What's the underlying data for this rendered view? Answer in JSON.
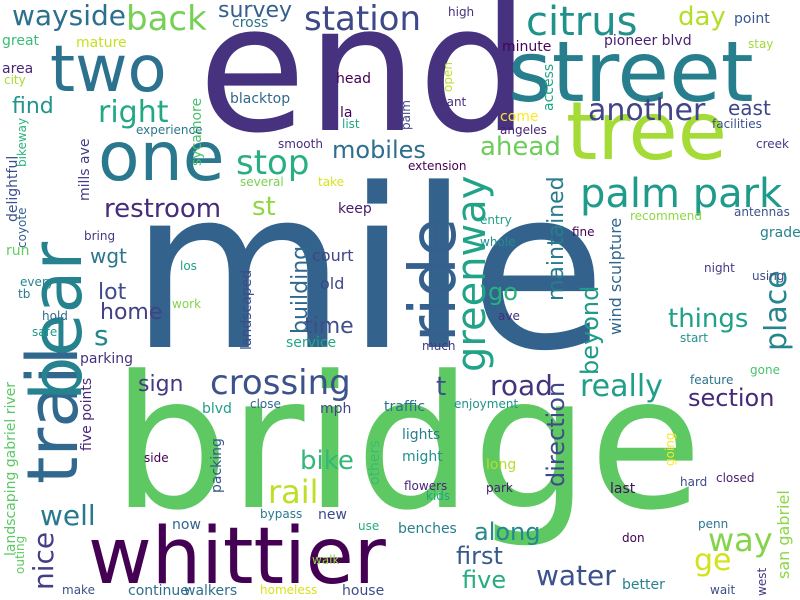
{
  "cloud": {
    "background": "#ffffff",
    "words": [
      {
        "text": "mile",
        "color": "#33638d"
      },
      {
        "text": "bridge",
        "color": "#5ec962"
      },
      {
        "text": "end",
        "color": "#46327e"
      },
      {
        "text": "tree",
        "color": "#a5db36"
      },
      {
        "text": "street",
        "color": "#277f8e"
      },
      {
        "text": "whittier",
        "color": "#440154"
      },
      {
        "text": "trail",
        "color": "#31688e"
      },
      {
        "text": "bear",
        "color": "#26828e"
      },
      {
        "text": "ride",
        "color": "#35608d"
      },
      {
        "text": "one",
        "color": "#2a788e"
      },
      {
        "text": "two",
        "color": "#2c728e"
      },
      {
        "text": "citrus",
        "color": "#21918c"
      },
      {
        "text": "palm park",
        "color": "#1e9b8a"
      },
      {
        "text": "crossing",
        "color": "#3b528b"
      },
      {
        "text": "station",
        "color": "#3e4989"
      },
      {
        "text": "back",
        "color": "#75d054"
      },
      {
        "text": "stop",
        "color": "#29af7f"
      },
      {
        "text": "greenway",
        "color": "#20a386"
      },
      {
        "text": "wayside",
        "color": "#2d708e"
      },
      {
        "text": "another",
        "color": "#414487"
      },
      {
        "text": "right",
        "color": "#22a884"
      },
      {
        "text": "road",
        "color": "#46337f"
      },
      {
        "text": "really",
        "color": "#1f9e89"
      },
      {
        "text": "water",
        "color": "#3b518b"
      },
      {
        "text": "rail",
        "color": "#bddf26"
      },
      {
        "text": "way",
        "color": "#84d44b"
      },
      {
        "text": "place",
        "color": "#25858e"
      },
      {
        "text": "restroom",
        "color": "#472c7a"
      },
      {
        "text": "mobiles",
        "color": "#2e6e8e"
      },
      {
        "text": "ahead",
        "color": "#6ccd5a"
      },
      {
        "text": "section",
        "color": "#482878"
      },
      {
        "text": "things",
        "color": "#1fa188"
      },
      {
        "text": "day",
        "color": "#b5de2b"
      },
      {
        "text": "ge",
        "color": "#d2e21b"
      },
      {
        "text": "well",
        "color": "#29798e"
      },
      {
        "text": "nice",
        "color": "#433e85"
      },
      {
        "text": "direction",
        "color": "#3e4a89"
      },
      {
        "text": "bike",
        "color": "#35b779"
      },
      {
        "text": "along",
        "color": "#23898e"
      },
      {
        "text": "east",
        "color": "#3f4788"
      },
      {
        "text": "maintained",
        "color": "#287c8e"
      },
      {
        "text": "beyond",
        "color": "#1e9c89"
      },
      {
        "text": "survey",
        "color": "#355f8d"
      },
      {
        "text": "go",
        "color": "#2ab07f"
      },
      {
        "text": "five",
        "color": "#26ad81"
      },
      {
        "text": "first",
        "color": "#375a8c"
      },
      {
        "text": "time",
        "color": "#3d4e8a"
      },
      {
        "text": "building",
        "color": "#30698e"
      },
      {
        "text": "home",
        "color": "#424186"
      },
      {
        "text": "lot",
        "color": "#3e4c8a"
      },
      {
        "text": "sign",
        "color": "#453781"
      },
      {
        "text": "find",
        "color": "#1f958b"
      },
      {
        "text": "st",
        "color": "#90d743"
      },
      {
        "text": "s",
        "color": "#24878e"
      },
      {
        "text": "wgt",
        "color": "#2b758e"
      },
      {
        "text": "t",
        "color": "#3c4f8a"
      },
      {
        "text": "wind sculpture",
        "color": "#32658e"
      },
      {
        "text": "san gabriel",
        "color": "#8bd646"
      },
      {
        "text": "point",
        "color": "#38588c"
      },
      {
        "text": "pioneer blvd",
        "color": "#481f70"
      },
      {
        "text": "minute",
        "color": "#450559"
      },
      {
        "text": "high",
        "color": "#46307e"
      },
      {
        "text": "cross",
        "color": "#2c718e"
      },
      {
        "text": "great",
        "color": "#3bbb75"
      },
      {
        "text": "mature",
        "color": "#c8e020"
      },
      {
        "text": "area",
        "color": "#482677"
      },
      {
        "text": "city",
        "color": "#a8db34"
      },
      {
        "text": "sycamore",
        "color": "#4ac16d"
      },
      {
        "text": "head",
        "color": "#440154"
      },
      {
        "text": "blacktop",
        "color": "#31688e"
      },
      {
        "text": "la",
        "color": "#46085c"
      },
      {
        "text": "list",
        "color": "#22a785"
      },
      {
        "text": "palm",
        "color": "#3e4989"
      },
      {
        "text": "open",
        "color": "#bddf26"
      },
      {
        "text": "cant",
        "color": "#472d7b"
      },
      {
        "text": "access",
        "color": "#20a486"
      },
      {
        "text": "come",
        "color": "#fde725"
      },
      {
        "text": "angeles",
        "color": "#482475"
      },
      {
        "text": "stay",
        "color": "#a0da39"
      },
      {
        "text": "facilities",
        "color": "#3b528b"
      },
      {
        "text": "creek",
        "color": "#433d84"
      },
      {
        "text": "experience",
        "color": "#2a778e"
      },
      {
        "text": "smooth",
        "color": "#46307e"
      },
      {
        "text": "extension",
        "color": "#440154"
      },
      {
        "text": "several",
        "color": "#7ad151"
      },
      {
        "text": "take",
        "color": "#d8e219"
      },
      {
        "text": "mills ave",
        "color": "#433e85"
      },
      {
        "text": "bikeway",
        "color": "#2db27d"
      },
      {
        "text": "delightful",
        "color": "#3c508b"
      },
      {
        "text": "coyote",
        "color": "#34618d"
      },
      {
        "text": "bring",
        "color": "#443983"
      },
      {
        "text": "run",
        "color": "#65cb5e"
      },
      {
        "text": "every",
        "color": "#24868e"
      },
      {
        "text": "tb",
        "color": "#29798e"
      },
      {
        "text": "safe",
        "color": "#1f9a8a"
      },
      {
        "text": "hold",
        "color": "#2f6c8e"
      },
      {
        "text": "los",
        "color": "#1fa187"
      },
      {
        "text": "work",
        "color": "#84d44b"
      },
      {
        "text": "court",
        "color": "#404588"
      },
      {
        "text": "old",
        "color": "#3f4889"
      },
      {
        "text": "keep",
        "color": "#481b6d"
      },
      {
        "text": "antennas",
        "color": "#3b528b"
      },
      {
        "text": "grade",
        "color": "#25848e"
      },
      {
        "text": "using",
        "color": "#3d4e8a"
      },
      {
        "text": "recommend",
        "color": "#8fd744"
      },
      {
        "text": "entry",
        "color": "#1fa088"
      },
      {
        "text": "whole",
        "color": "#228b8d"
      },
      {
        "text": "fine",
        "color": "#440154"
      },
      {
        "text": "night",
        "color": "#443a83"
      },
      {
        "text": "ave",
        "color": "#472e7c"
      },
      {
        "text": "much",
        "color": "#453882"
      },
      {
        "text": "start",
        "color": "#21918c"
      },
      {
        "text": "feature",
        "color": "#2c738e"
      },
      {
        "text": "gone",
        "color": "#4ac16d"
      },
      {
        "text": "landscaped",
        "color": "#3e4a89"
      },
      {
        "text": "service",
        "color": "#22a884"
      },
      {
        "text": "parking",
        "color": "#46327e"
      },
      {
        "text": "landscaping gabriel river",
        "color": "#5ac864"
      },
      {
        "text": "five points",
        "color": "#482878"
      },
      {
        "text": "blvd",
        "color": "#1f9e89"
      },
      {
        "text": "close",
        "color": "#31678e"
      },
      {
        "text": "mph",
        "color": "#414487"
      },
      {
        "text": "traffic",
        "color": "#2d708e"
      },
      {
        "text": "enjoyment",
        "color": "#20928c"
      },
      {
        "text": "lights",
        "color": "#277f8e"
      },
      {
        "text": "might",
        "color": "#21908d"
      },
      {
        "text": "others",
        "color": "#3aba76"
      },
      {
        "text": "packing",
        "color": "#38588c"
      },
      {
        "text": "side",
        "color": "#440154"
      },
      {
        "text": "flowers",
        "color": "#482777"
      },
      {
        "text": "kids",
        "color": "#20a486"
      },
      {
        "text": "long",
        "color": "#b5de2b"
      },
      {
        "text": "going",
        "color": "#fde725"
      },
      {
        "text": "hard",
        "color": "#3e4c8a"
      },
      {
        "text": "closed",
        "color": "#481f70"
      },
      {
        "text": "park",
        "color": "#482173"
      },
      {
        "text": "last",
        "color": "#470e61"
      },
      {
        "text": "bypass",
        "color": "#29798e"
      },
      {
        "text": "new",
        "color": "#3e4989"
      },
      {
        "text": "now",
        "color": "#33638d"
      },
      {
        "text": "use",
        "color": "#25ab82"
      },
      {
        "text": "benches",
        "color": "#287d8e"
      },
      {
        "text": "penn",
        "color": "#2a768e"
      },
      {
        "text": "outing",
        "color": "#5ec962"
      },
      {
        "text": "walk",
        "color": "#90d743"
      },
      {
        "text": "continue",
        "color": "#2f6c8e"
      },
      {
        "text": "walkers",
        "color": "#2e6f8e"
      },
      {
        "text": "house",
        "color": "#3e4c8a"
      },
      {
        "text": "don",
        "color": "#440154"
      },
      {
        "text": "better",
        "color": "#26818e"
      },
      {
        "text": "west",
        "color": "#453882"
      },
      {
        "text": "wait",
        "color": "#3c4f8a"
      },
      {
        "text": "make",
        "color": "#3b518b"
      },
      {
        "text": "homeless",
        "color": "#d8e219"
      }
    ]
  }
}
